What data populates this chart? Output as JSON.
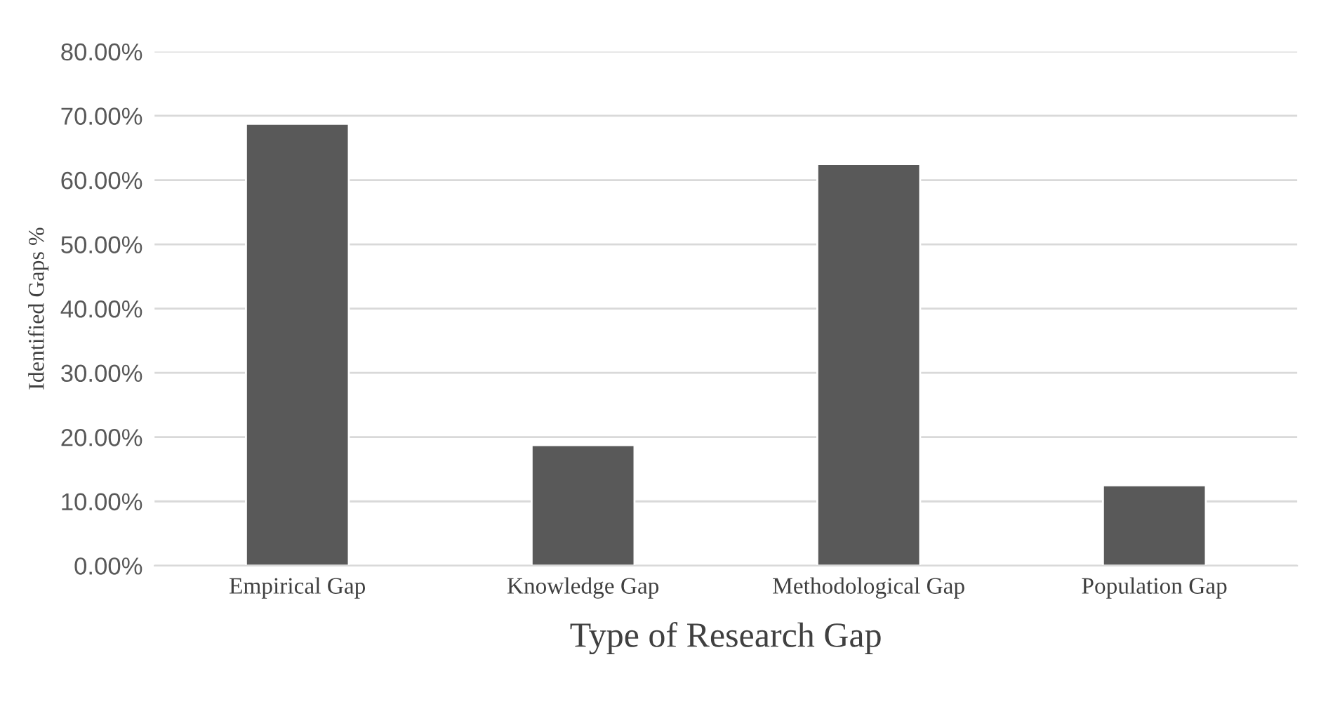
{
  "chart_data": {
    "type": "bar",
    "xlabel": "Type of Research Gap",
    "ylabel": "Identified Gaps %",
    "categories": [
      "Empirical Gap",
      "Knowledge Gap",
      "Methodological Gap",
      "Population Gap"
    ],
    "values": [
      68.75,
      18.75,
      62.5,
      12.5
    ],
    "color": "#595959",
    "ylim": [
      0,
      80
    ],
    "yticks": [
      {
        "value": 0,
        "label": "0.00%"
      },
      {
        "value": 10,
        "label": "10.00%"
      },
      {
        "value": 20,
        "label": "20.00%"
      },
      {
        "value": 30,
        "label": "30.00%"
      },
      {
        "value": 40,
        "label": "40.00%"
      },
      {
        "value": 50,
        "label": "50.00%"
      },
      {
        "value": 60,
        "label": "60.00%"
      },
      {
        "value": 70,
        "label": "70.00%"
      },
      {
        "value": 80,
        "label": "80.00%"
      }
    ],
    "grid": "y",
    "legend": false
  }
}
